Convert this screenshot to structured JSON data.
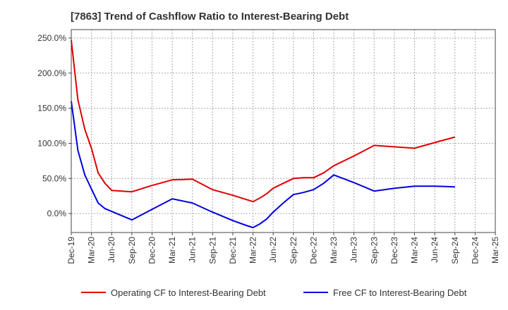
{
  "chart_data": {
    "type": "line",
    "title": "[7863]  Trend of Cashflow Ratio to Interest-Bearing Debt",
    "xlabel": "",
    "ylabel": "",
    "x_ticks": [
      "Dec-19",
      "Mar-20",
      "Jun-20",
      "Sep-20",
      "Dec-20",
      "Mar-21",
      "Jun-21",
      "Sep-21",
      "Dec-21",
      "Mar-22",
      "Jun-22",
      "Sep-22",
      "Dec-22",
      "Mar-23",
      "Jun-23",
      "Sep-23",
      "Dec-23",
      "Mar-24",
      "Jun-24",
      "Sep-24",
      "Dec-24",
      "Mar-25"
    ],
    "y_ticks": [
      "250.0%",
      "200.0%",
      "150.0%",
      "100.0%",
      "50.0%",
      "0.0%"
    ],
    "y_tick_values": [
      250,
      200,
      150,
      100,
      50,
      0
    ],
    "ylim": [
      -27,
      262
    ],
    "grid": true,
    "legend_position": "bottom",
    "series": [
      {
        "name": "Operating CF to Interest-Bearing Debt",
        "color": "#e00000",
        "x": [
          0,
          0.33,
          0.67,
          1,
          1.33,
          1.67,
          2,
          3,
          4,
          5,
          6,
          7,
          8,
          8.67,
          9,
          9.33,
          9.67,
          10,
          10.5,
          11,
          11.5,
          12,
          12.5,
          13,
          14,
          15,
          16,
          17,
          18,
          19
        ],
        "values": [
          247,
          162,
          120,
          93,
          58,
          43,
          33,
          31,
          40,
          48,
          49,
          34,
          26,
          20,
          17,
          22,
          28,
          36,
          43,
          50,
          51,
          51,
          58,
          68,
          82,
          97,
          95,
          93,
          101,
          109
        ]
      },
      {
        "name": "Free CF to Interest-Bearing Debt",
        "color": "#0000e0",
        "x": [
          0,
          0.33,
          0.67,
          1,
          1.33,
          1.67,
          2,
          3,
          4,
          5,
          6,
          7,
          8,
          8.67,
          9,
          9.33,
          9.67,
          10,
          10.5,
          11,
          11.5,
          12,
          12.5,
          13,
          14,
          15,
          16,
          17,
          18,
          19
        ],
        "values": [
          160,
          90,
          55,
          35,
          15,
          7,
          3,
          -9,
          6,
          21,
          15,
          2,
          -10,
          -17,
          -20,
          -15,
          -8,
          2,
          15,
          27,
          30,
          34,
          43,
          55,
          44,
          32,
          36,
          39,
          39,
          38
        ]
      }
    ]
  }
}
